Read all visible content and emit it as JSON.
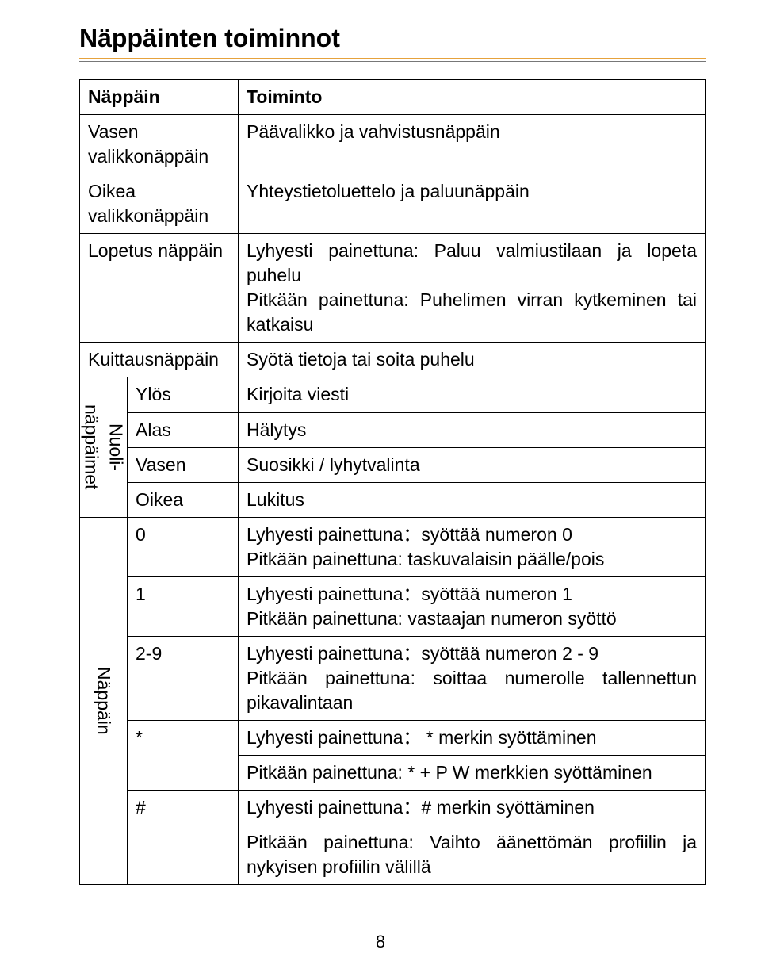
{
  "title": "Näppäinten toiminnot",
  "header": {
    "col1": "Näppäin",
    "col2": "Toiminto"
  },
  "rows": {
    "vasen_valikko": {
      "key": "Vasen valikkonäppäin",
      "val": "Päävalikko ja vahvistusnäppäin"
    },
    "oikea_valikko": {
      "key": "Oikea valikkonäppäin",
      "val": "Yhteystietoluettelo ja paluunäppäin"
    },
    "lopetus": {
      "key": "Lopetus näppäin",
      "val": "Lyhyesti painettuna: Paluu valmiustilaan ja lopeta puhelu\nPitkään painettuna: Puhelimen virran kytkeminen tai katkaisu"
    },
    "kuittaus": {
      "key": "Kuittausnäppäin",
      "val": "Syötä tietoja tai soita puhelu"
    },
    "nuoli": {
      "group": "Nuoli-\nnäppäimet",
      "ylos": {
        "k": "Ylös",
        "v": "Kirjoita viesti"
      },
      "alas": {
        "k": "Alas",
        "v": "Hälytys"
      },
      "vasen": {
        "k": "Vasen",
        "v": "Suosikki / lyhytvalinta"
      },
      "oikea": {
        "k": "Oikea",
        "v": "Lukitus"
      }
    },
    "nappain": {
      "group": "Näppäin",
      "r0": {
        "k": "0",
        "v": "Lyhyesti painettuna：syöttää numeron 0\nPitkään painettuna: taskuvalaisin päälle/pois"
      },
      "r1": {
        "k": "1",
        "v": "Lyhyesti painettuna：syöttää numeron 1\nPitkään painettuna: vastaajan numeron syöttö"
      },
      "r29": {
        "k": "2-9",
        "v": "Lyhyesti painettuna：syöttää numeron 2 - 9\nPitkään painettuna: soittaa numerolle tallennettun pikavalintaan"
      },
      "rstar_a": {
        "k": "*",
        "v": "Lyhyesti painettuna： * merkin syöttäminen"
      },
      "rstar_b": {
        "v": "Pitkään painettuna: * + P W merkkien syöttäminen"
      },
      "rhash_a": {
        "k": "#",
        "v": "Lyhyesti painettuna：# merkin syöttäminen"
      },
      "rhash_b": {
        "v": "Pitkään painettuna: Vaihto äänettömän profiilin ja nykyisen profiilin välillä"
      }
    }
  },
  "page_number": "8",
  "colors": {
    "accent": "#e6a23c",
    "border": "#000000",
    "text": "#000000"
  }
}
